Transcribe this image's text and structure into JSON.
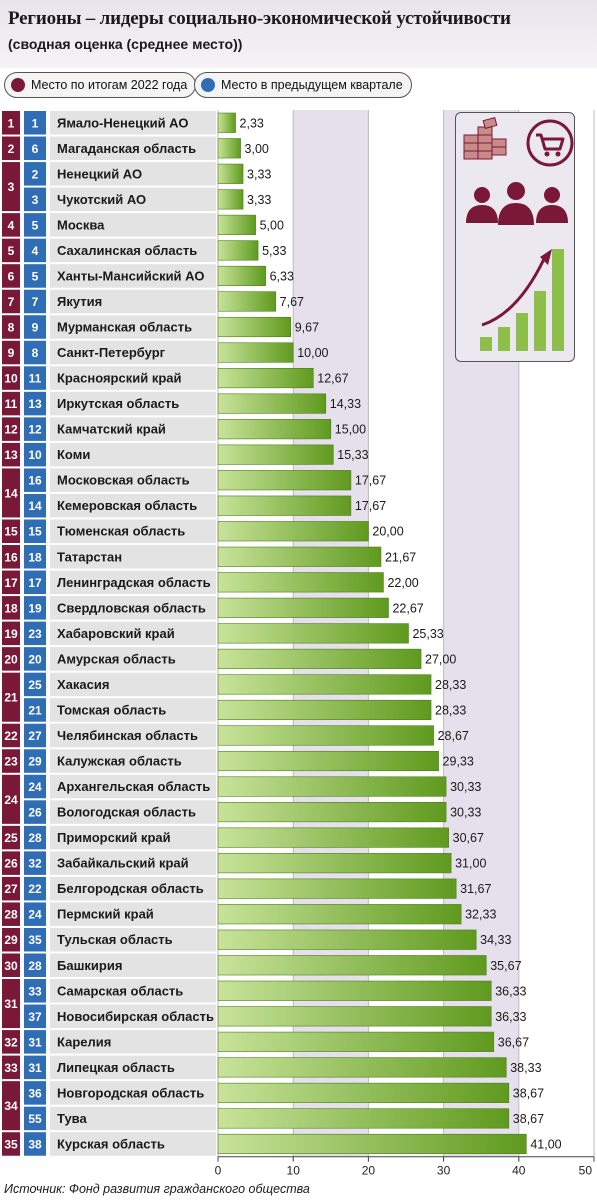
{
  "header": {
    "title": "Регионы – лидеры социально-экономической устойчивости",
    "subtitle": "(сводная оценка (среднее место))"
  },
  "legend": {
    "current_label": "Место по итогам 2022 года",
    "previous_label": "Место в предыдущем квартале"
  },
  "colors": {
    "current_rank": "#7a1838",
    "previous_rank": "#2f6db5",
    "bar_light": "#c8e39a",
    "bar_dark": "#5f9a1e",
    "band": "#e6e0ec"
  },
  "source": "Источник: Фонд развития гражданского общества",
  "infographic_icons": [
    "money-stack-icon",
    "shopping-cart-icon",
    "people-icon",
    "growth-chart-icon"
  ],
  "chart_data": {
    "type": "bar",
    "orientation": "horizontal",
    "xlim": [
      0,
      50
    ],
    "ticks": [
      "0",
      "10",
      "20",
      "30",
      "40",
      "50"
    ],
    "rank_groups": [
      {
        "rank": "1",
        "size": 1
      },
      {
        "rank": "2",
        "size": 1
      },
      {
        "rank": "3",
        "size": 2
      },
      {
        "rank": "4",
        "size": 1
      },
      {
        "rank": "5",
        "size": 1
      },
      {
        "rank": "6",
        "size": 1
      },
      {
        "rank": "7",
        "size": 1
      },
      {
        "rank": "8",
        "size": 1
      },
      {
        "rank": "9",
        "size": 1
      },
      {
        "rank": "10",
        "size": 1
      },
      {
        "rank": "11",
        "size": 1
      },
      {
        "rank": "12",
        "size": 1
      },
      {
        "rank": "13",
        "size": 1
      },
      {
        "rank": "14",
        "size": 2
      },
      {
        "rank": "15",
        "size": 1
      },
      {
        "rank": "16",
        "size": 1
      },
      {
        "rank": "17",
        "size": 1
      },
      {
        "rank": "18",
        "size": 1
      },
      {
        "rank": "19",
        "size": 1
      },
      {
        "rank": "20",
        "size": 1
      },
      {
        "rank": "21",
        "size": 2
      },
      {
        "rank": "22",
        "size": 1
      },
      {
        "rank": "23",
        "size": 1
      },
      {
        "rank": "24",
        "size": 2
      },
      {
        "rank": "25",
        "size": 1
      },
      {
        "rank": "26",
        "size": 1
      },
      {
        "rank": "27",
        "size": 1
      },
      {
        "rank": "28",
        "size": 1
      },
      {
        "rank": "29",
        "size": 1
      },
      {
        "rank": "30",
        "size": 1
      },
      {
        "rank": "31",
        "size": 2
      },
      {
        "rank": "32",
        "size": 1
      },
      {
        "rank": "33",
        "size": 1
      },
      {
        "rank": "34",
        "size": 2
      },
      {
        "rank": "35",
        "size": 1
      }
    ],
    "rows": [
      {
        "prev": "1",
        "region": "Ямало-Ненецкий АО",
        "value": 2.33,
        "label": "2,33"
      },
      {
        "prev": "6",
        "region": "Магаданская область",
        "value": 3.0,
        "label": "3,00"
      },
      {
        "prev": "2",
        "region": "Ненецкий АО",
        "value": 3.33,
        "label": "3,33"
      },
      {
        "prev": "3",
        "region": "Чукотский АО",
        "value": 3.33,
        "label": "3,33"
      },
      {
        "prev": "5",
        "region": "Москва",
        "value": 5.0,
        "label": "5,00"
      },
      {
        "prev": "4",
        "region": "Сахалинская область",
        "value": 5.33,
        "label": "5,33"
      },
      {
        "prev": "5",
        "region": "Ханты-Мансийский АО",
        "value": 6.33,
        "label": "6,33"
      },
      {
        "prev": "7",
        "region": "Якутия",
        "value": 7.67,
        "label": "7,67"
      },
      {
        "prev": "9",
        "region": "Мурманская область",
        "value": 9.67,
        "label": "9,67"
      },
      {
        "prev": "8",
        "region": "Санкт-Петербург",
        "value": 10.0,
        "label": "10,00"
      },
      {
        "prev": "11",
        "region": "Красноярский край",
        "value": 12.67,
        "label": "12,67"
      },
      {
        "prev": "13",
        "region": "Иркутская область",
        "value": 14.33,
        "label": "14,33"
      },
      {
        "prev": "12",
        "region": "Камчатский край",
        "value": 15.0,
        "label": "15,00"
      },
      {
        "prev": "10",
        "region": "Коми",
        "value": 15.33,
        "label": "15,33"
      },
      {
        "prev": "16",
        "region": "Московская область",
        "value": 17.67,
        "label": "17,67"
      },
      {
        "prev": "14",
        "region": "Кемеровская область",
        "value": 17.67,
        "label": "17,67"
      },
      {
        "prev": "15",
        "region": "Тюменская область",
        "value": 20.0,
        "label": "20,00"
      },
      {
        "prev": "18",
        "region": "Татарстан",
        "value": 21.67,
        "label": "21,67"
      },
      {
        "prev": "17",
        "region": "Ленинградская область",
        "value": 22.0,
        "label": "22,00"
      },
      {
        "prev": "19",
        "region": "Свердловская область",
        "value": 22.67,
        "label": "22,67"
      },
      {
        "prev": "23",
        "region": "Хабаровский край",
        "value": 25.33,
        "label": "25,33"
      },
      {
        "prev": "20",
        "region": "Амурская область",
        "value": 27.0,
        "label": "27,00"
      },
      {
        "prev": "25",
        "region": "Хакасия",
        "value": 28.33,
        "label": "28,33"
      },
      {
        "prev": "21",
        "region": "Томская область",
        "value": 28.33,
        "label": "28,33"
      },
      {
        "prev": "27",
        "region": "Челябинская область",
        "value": 28.67,
        "label": "28,67"
      },
      {
        "prev": "29",
        "region": "Калужская область",
        "value": 29.33,
        "label": "29,33"
      },
      {
        "prev": "24",
        "region": "Архангельская область",
        "value": 30.33,
        "label": "30,33"
      },
      {
        "prev": "26",
        "region": "Вологодская область",
        "value": 30.33,
        "label": "30,33"
      },
      {
        "prev": "28",
        "region": "Приморский край",
        "value": 30.67,
        "label": "30,67"
      },
      {
        "prev": "32",
        "region": "Забайкальский край",
        "value": 31.0,
        "label": "31,00"
      },
      {
        "prev": "22",
        "region": "Белгородская область",
        "value": 31.67,
        "label": "31,67"
      },
      {
        "prev": "24",
        "region": "Пермский край",
        "value": 32.33,
        "label": "32,33"
      },
      {
        "prev": "35",
        "region": "Тульская область",
        "value": 34.33,
        "label": "34,33"
      },
      {
        "prev": "28",
        "region": "Башкирия",
        "value": 35.67,
        "label": "35,67"
      },
      {
        "prev": "33",
        "region": "Самарская область",
        "value": 36.33,
        "label": "36,33"
      },
      {
        "prev": "37",
        "region": "Новосибирская область",
        "value": 36.33,
        "label": "36,33"
      },
      {
        "prev": "31",
        "region": "Карелия",
        "value": 36.67,
        "label": "36,67"
      },
      {
        "prev": "31",
        "region": "Липецкая область",
        "value": 38.33,
        "label": "38,33"
      },
      {
        "prev": "36",
        "region": "Новгородская область",
        "value": 38.67,
        "label": "38,67"
      },
      {
        "prev": "55",
        "region": "Тува",
        "value": 38.67,
        "label": "38,67"
      },
      {
        "prev": "38",
        "region": "Курская область",
        "value": 41.0,
        "label": "41,00"
      }
    ]
  }
}
